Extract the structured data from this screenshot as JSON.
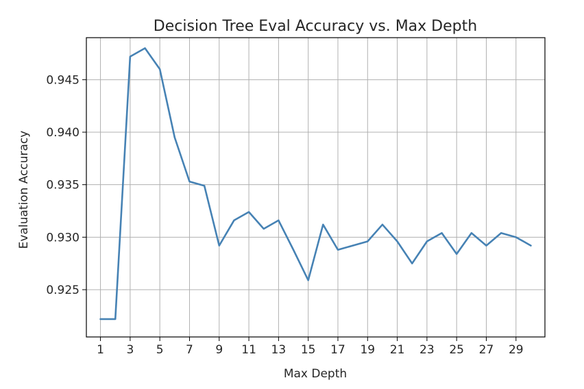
{
  "chart_data": {
    "type": "line",
    "title": "Decision Tree Eval Accuracy vs. Max Depth",
    "xlabel": "Max Depth",
    "ylabel": "Evaluation Accuracy",
    "xlim": [
      0.05,
      30.95
    ],
    "ylim": [
      0.9205,
      0.949
    ],
    "xticks": [
      1,
      3,
      5,
      7,
      9,
      11,
      13,
      15,
      17,
      19,
      21,
      23,
      25,
      27,
      29
    ],
    "yticks": [
      0.925,
      0.93,
      0.935,
      0.94,
      0.945
    ],
    "ytick_labels": [
      "0.925",
      "0.930",
      "0.935",
      "0.940",
      "0.945"
    ],
    "grid": true,
    "line_color": "#4682b4",
    "series": [
      {
        "x": [
          1,
          2,
          3,
          4,
          5,
          6,
          7,
          8,
          9,
          10,
          11,
          12,
          13,
          14,
          15,
          16,
          17,
          18,
          19,
          20,
          21,
          22,
          23,
          24,
          25,
          26,
          27,
          28,
          29,
          30
        ],
        "values": [
          0.9222,
          0.9222,
          0.9472,
          0.948,
          0.946,
          0.9395,
          0.9353,
          0.9349,
          0.9292,
          0.9316,
          0.9324,
          0.9308,
          0.9316,
          0.9288,
          0.9259,
          0.9312,
          0.9288,
          0.9292,
          0.9296,
          0.9312,
          0.9296,
          0.9275,
          0.9296,
          0.9304,
          0.9284,
          0.9304,
          0.9292,
          0.9304,
          0.93,
          0.9292
        ]
      }
    ]
  }
}
